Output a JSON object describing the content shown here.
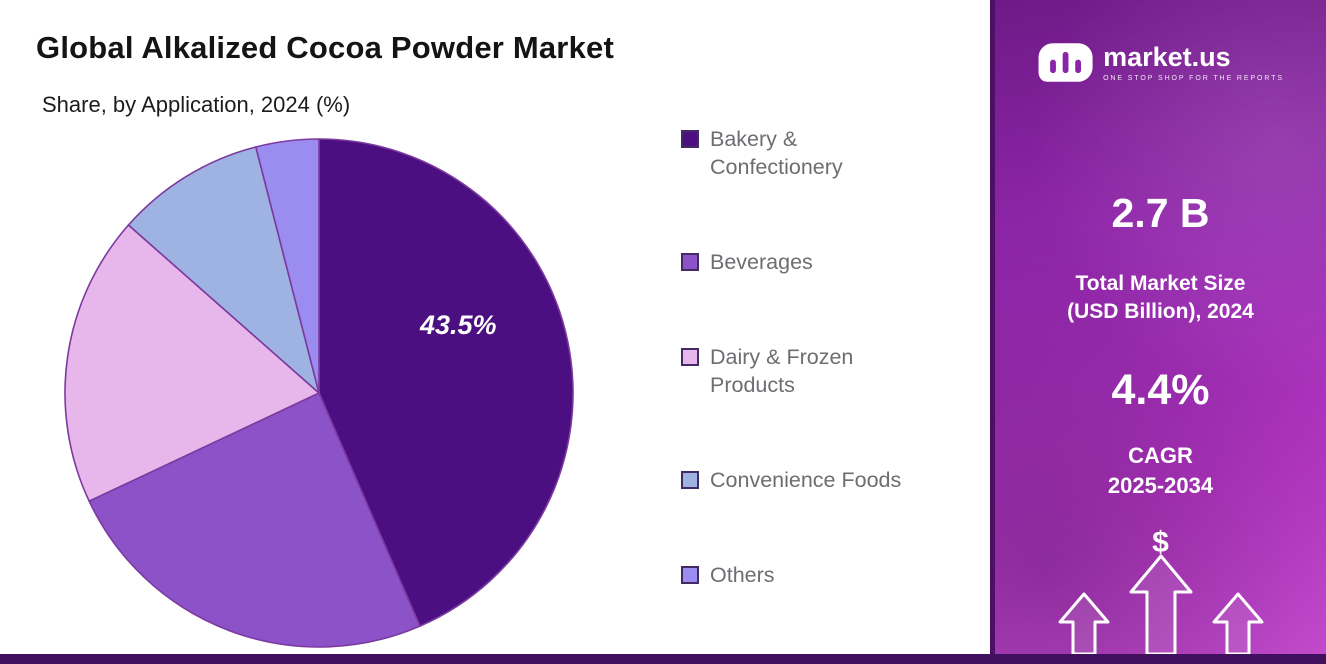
{
  "header": {
    "title": "Global Alkalized Cocoa Powder Market",
    "subtitle": "Share, by Application, 2024 (%)"
  },
  "chart_data": {
    "type": "pie",
    "title": "Global Alkalized Cocoa Powder Market",
    "subtitle": "Share, by Application, 2024 (%)",
    "unit": "%",
    "start_angle_deg": 0,
    "direction": "clockwise",
    "legend_position": "right",
    "slices": [
      {
        "label": "Bakery & Confectionery",
        "value": 43.5,
        "color": "#4C0F82",
        "data_label": "43.5%"
      },
      {
        "label": "Beverages",
        "value": 24.5,
        "color": "#8C52C7",
        "data_label": ""
      },
      {
        "label": "Dairy & Frozen Products",
        "value": 18.5,
        "color": "#E7B6EB",
        "data_label": ""
      },
      {
        "label": "Convenience Foods",
        "value": 9.5,
        "color": "#9FB3E3",
        "data_label": ""
      },
      {
        "label": "Others",
        "value": 4.0,
        "color": "#9B8CF0",
        "data_label": ""
      }
    ]
  },
  "colors": {
    "slice_stroke": "#7C3AA0",
    "legend_swatch_border": "#432a63",
    "sidebar_gradient_top": "#6e1a87",
    "sidebar_gradient_bottom": "#cb4fd4",
    "bottom_bar": "#400f5e",
    "text_on_sidebar": "#ffffff"
  },
  "sidebar": {
    "brand": "market.us",
    "tagline": "ONE STOP SHOP FOR THE REPORTS",
    "stat1": {
      "value": "2.7 B",
      "label_line1": "Total Market Size",
      "label_line2": "(USD Billion), 2024"
    },
    "stat2": {
      "value": "4.4%",
      "label_line1": "CAGR",
      "label_line2": "2025-2034"
    },
    "dollar_symbol": "$"
  }
}
